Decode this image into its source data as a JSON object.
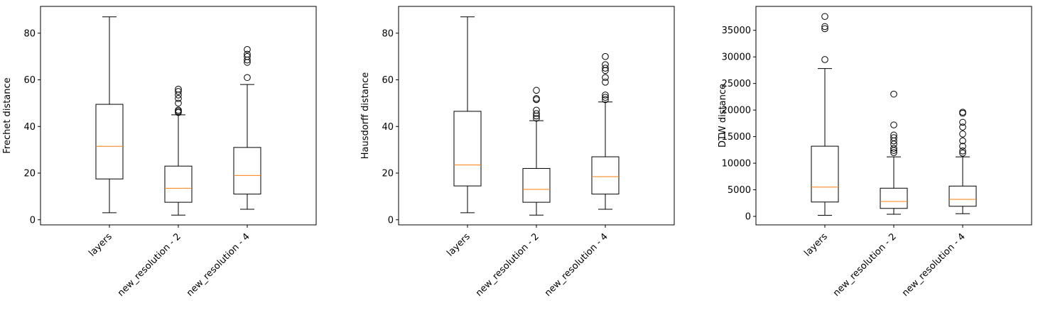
{
  "chart_data": [
    {
      "type": "box",
      "title": "",
      "xlabel": "",
      "ylabel": "Frechet distance",
      "categories": [
        "layers",
        "new_resolution - 2",
        "new_resolution - 4"
      ],
      "ylim": [
        -2.2,
        91.5
      ],
      "yticks": [
        0,
        20,
        40,
        60,
        80
      ],
      "yticklabels": [
        "0",
        "20",
        "40",
        "60",
        "80"
      ],
      "boxes": [
        {
          "whislo": 3,
          "q1": 17.5,
          "med": 31.5,
          "q3": 49.5,
          "whishi": 87,
          "fliers": []
        },
        {
          "whislo": 2,
          "q1": 7.5,
          "med": 13.5,
          "q3": 23,
          "whishi": 45,
          "fliers": [
            46,
            46.5,
            47,
            50,
            52,
            53.5,
            55,
            56
          ]
        },
        {
          "whislo": 4.5,
          "q1": 11,
          "med": 19,
          "q3": 31,
          "whishi": 58,
          "fliers": [
            61,
            67.5,
            68.5,
            70,
            71,
            73
          ]
        }
      ]
    },
    {
      "type": "box",
      "title": "",
      "xlabel": "",
      "ylabel": "Hausdorff distance",
      "categories": [
        "layers",
        "new_resolution - 2",
        "new_resolution - 4"
      ],
      "ylim": [
        -2.2,
        91.5
      ],
      "yticks": [
        0,
        20,
        40,
        60,
        80
      ],
      "yticklabels": [
        "0",
        "20",
        "40",
        "60",
        "80"
      ],
      "boxes": [
        {
          "whislo": 3,
          "q1": 14.5,
          "med": 23.5,
          "q3": 46.5,
          "whishi": 87,
          "fliers": []
        },
        {
          "whislo": 2,
          "q1": 7.5,
          "med": 13,
          "q3": 22,
          "whishi": 42.5,
          "fliers": [
            43.5,
            44.5,
            45.5,
            47,
            51.5,
            52,
            55.5
          ]
        },
        {
          "whislo": 4.5,
          "q1": 11,
          "med": 18.5,
          "q3": 27,
          "whishi": 50.5,
          "fliers": [
            51.5,
            52.5,
            53.5,
            59,
            61,
            64,
            65,
            66.5,
            70
          ]
        }
      ]
    },
    {
      "type": "box",
      "title": "",
      "xlabel": "",
      "ylabel": "DTW distance",
      "categories": [
        "layers",
        "new_resolution - 2",
        "new_resolution - 4"
      ],
      "ylim": [
        -1600,
        39500
      ],
      "yticks": [
        0,
        5000,
        10000,
        15000,
        20000,
        25000,
        30000,
        35000
      ],
      "yticklabels": [
        "0",
        "5000",
        "10000",
        "15000",
        "20000",
        "25000",
        "30000",
        "35000"
      ],
      "boxes": [
        {
          "whislo": 200,
          "q1": 2700,
          "med": 5500,
          "q3": 13200,
          "whishi": 27800,
          "fliers": [
            29500,
            35300,
            35700,
            37600
          ]
        },
        {
          "whislo": 400,
          "q1": 1500,
          "med": 2800,
          "q3": 5300,
          "whishi": 11200,
          "fliers": [
            12000,
            12400,
            12800,
            13600,
            14200,
            14800,
            15300,
            17200,
            23000
          ]
        },
        {
          "whislo": 500,
          "q1": 1900,
          "med": 3200,
          "q3": 5700,
          "whishi": 11200,
          "fliers": [
            11900,
            12300,
            13200,
            14200,
            15500,
            16800,
            17700,
            19400,
            19600
          ]
        }
      ]
    }
  ],
  "colors": {
    "box": "#000000",
    "median": "#ff7f0e",
    "background": "#ffffff"
  }
}
